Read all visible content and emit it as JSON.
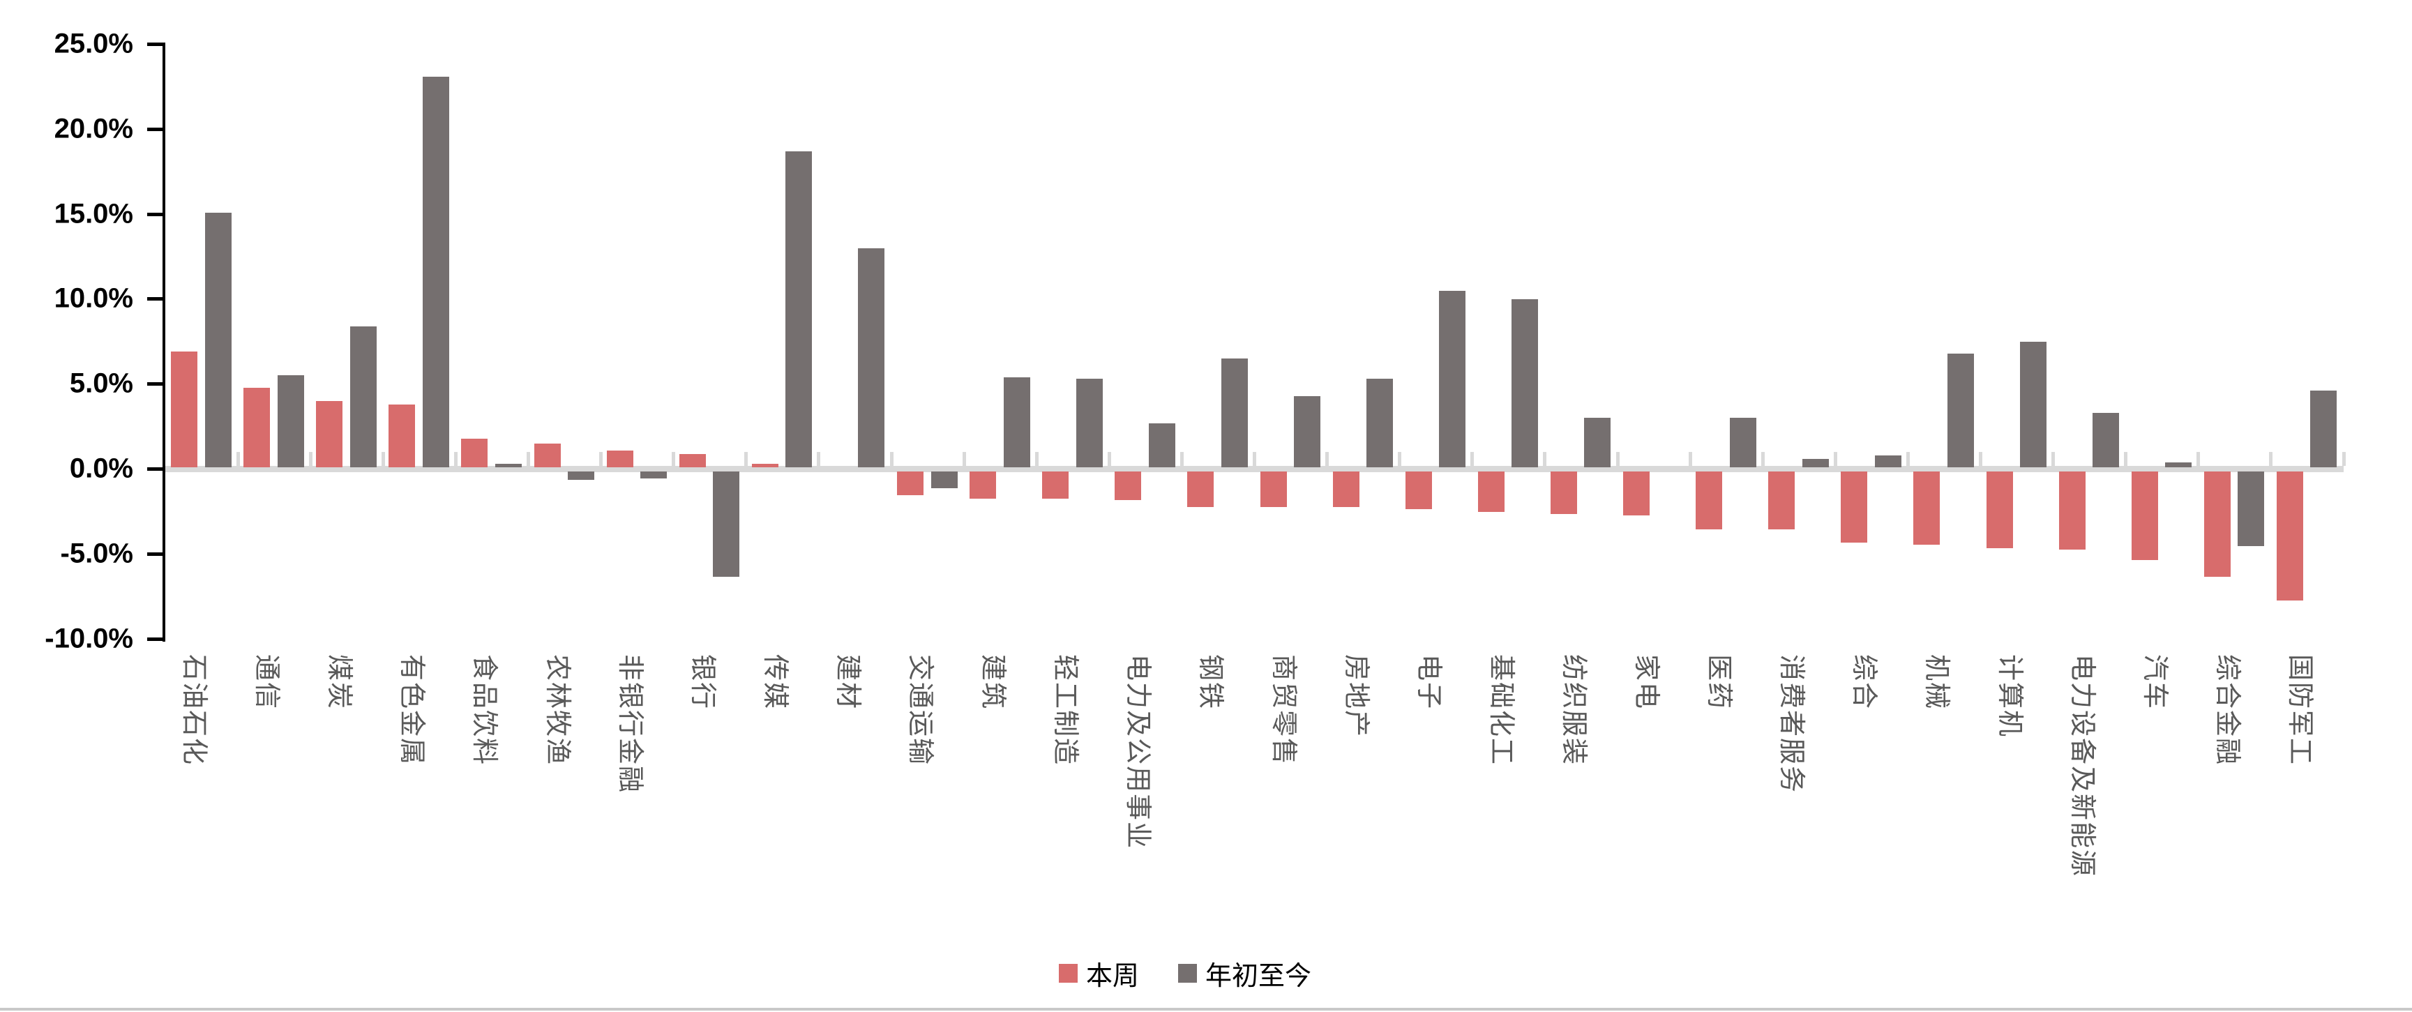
{
  "chart_data": {
    "type": "bar",
    "title": "",
    "xlabel": "",
    "ylabel": "",
    "categories": [
      "石油石化",
      "通信",
      "煤炭",
      "有色金属",
      "食品饮料",
      "农林牧渔",
      "非银行金融",
      "银行",
      "传媒",
      "建材",
      "交通运输",
      "建筑",
      "轻工制造",
      "电力及公用事业",
      "钢铁",
      "商贸零售",
      "房地产",
      "电子",
      "基础化工",
      "纺织服装",
      "家电",
      "医药",
      "消费者服务",
      "综合",
      "机械",
      "计算机",
      "电力设备及新能源",
      "汽车",
      "综合金融",
      "国防军工"
    ],
    "series": [
      {
        "name": "本周",
        "color": "#d86c6c",
        "values": [
          6.8,
          4.7,
          3.9,
          3.7,
          1.7,
          1.4,
          1.0,
          0.8,
          0.2,
          0.0,
          -1.4,
          -1.6,
          -1.6,
          -1.7,
          -2.1,
          -2.1,
          -2.1,
          -2.2,
          -2.4,
          -2.5,
          -2.6,
          -3.4,
          -3.4,
          -4.2,
          -4.3,
          -4.5,
          -4.6,
          -5.2,
          -6.2,
          -7.6
        ]
      },
      {
        "name": "年初至今",
        "color": "#756f6f",
        "values": [
          15.0,
          5.4,
          8.3,
          23.0,
          0.2,
          -0.5,
          -0.4,
          -6.2,
          18.6,
          12.9,
          -1.0,
          5.3,
          5.2,
          2.6,
          6.4,
          4.2,
          5.2,
          10.4,
          9.9,
          2.9,
          0.0,
          2.9,
          0.5,
          0.7,
          6.7,
          7.4,
          3.2,
          0.3,
          -4.4,
          4.5
        ]
      }
    ],
    "ylim": [
      -10,
      25
    ],
    "y_ticks": [
      25,
      20,
      15,
      10,
      5,
      0,
      -5,
      -10
    ],
    "y_tick_labels": [
      "25.0%",
      "20.0%",
      "15.0%",
      "10.0%",
      "5.0%",
      "0.0%",
      "-5.0%",
      "-10.0%"
    ],
    "grid": "zero-line-only",
    "legend_position": "bottom-center",
    "legend": [
      {
        "label": "本周",
        "color": "#d86c6c"
      },
      {
        "label": "年初至今",
        "color": "#756f6f"
      }
    ],
    "colors": {
      "axis": "#000000",
      "zero_gridline": "#d9d9d9",
      "category_tick": "#d9d9d9",
      "x_label_text": "#595959",
      "y_label_text": "#000000",
      "legend_text": "#000000",
      "background": "#ffffff"
    }
  }
}
